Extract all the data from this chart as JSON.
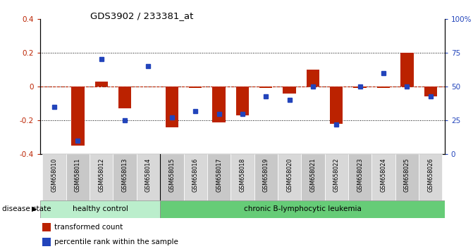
{
  "title": "GDS3902 / 233381_at",
  "samples": [
    "GSM658010",
    "GSM658011",
    "GSM658012",
    "GSM658013",
    "GSM658014",
    "GSM658015",
    "GSM658016",
    "GSM658017",
    "GSM658018",
    "GSM658019",
    "GSM658020",
    "GSM658021",
    "GSM658022",
    "GSM658023",
    "GSM658024",
    "GSM658025",
    "GSM658026"
  ],
  "red_values": [
    0.0,
    -0.35,
    0.03,
    -0.13,
    0.0,
    -0.24,
    -0.01,
    -0.21,
    -0.17,
    -0.01,
    -0.04,
    0.1,
    -0.22,
    -0.01,
    -0.01,
    0.2,
    -0.06
  ],
  "blue_values": [
    35,
    10,
    70,
    25,
    65,
    27,
    32,
    30,
    30,
    43,
    40,
    50,
    22,
    50,
    60,
    50,
    43
  ],
  "healthy_count": 5,
  "ylim_left": [
    -0.4,
    0.4
  ],
  "ylim_right": [
    0,
    100
  ],
  "yticks_left": [
    -0.4,
    -0.2,
    0.0,
    0.2,
    0.4
  ],
  "yticks_right": [
    0,
    25,
    50,
    75,
    100
  ],
  "ytick_labels_right": [
    "0",
    "25",
    "50",
    "75",
    "100%"
  ],
  "red_color": "#BB2200",
  "blue_color": "#2244BB",
  "healthy_color": "#bbeecc",
  "leukemia_color": "#66cc77",
  "label_healthy": "healthy control",
  "label_leukemia": "chronic B-lymphocytic leukemia",
  "legend_red": "transformed count",
  "legend_blue": "percentile rank within the sample",
  "disease_state_label": "disease state",
  "bar_width": 0.55
}
